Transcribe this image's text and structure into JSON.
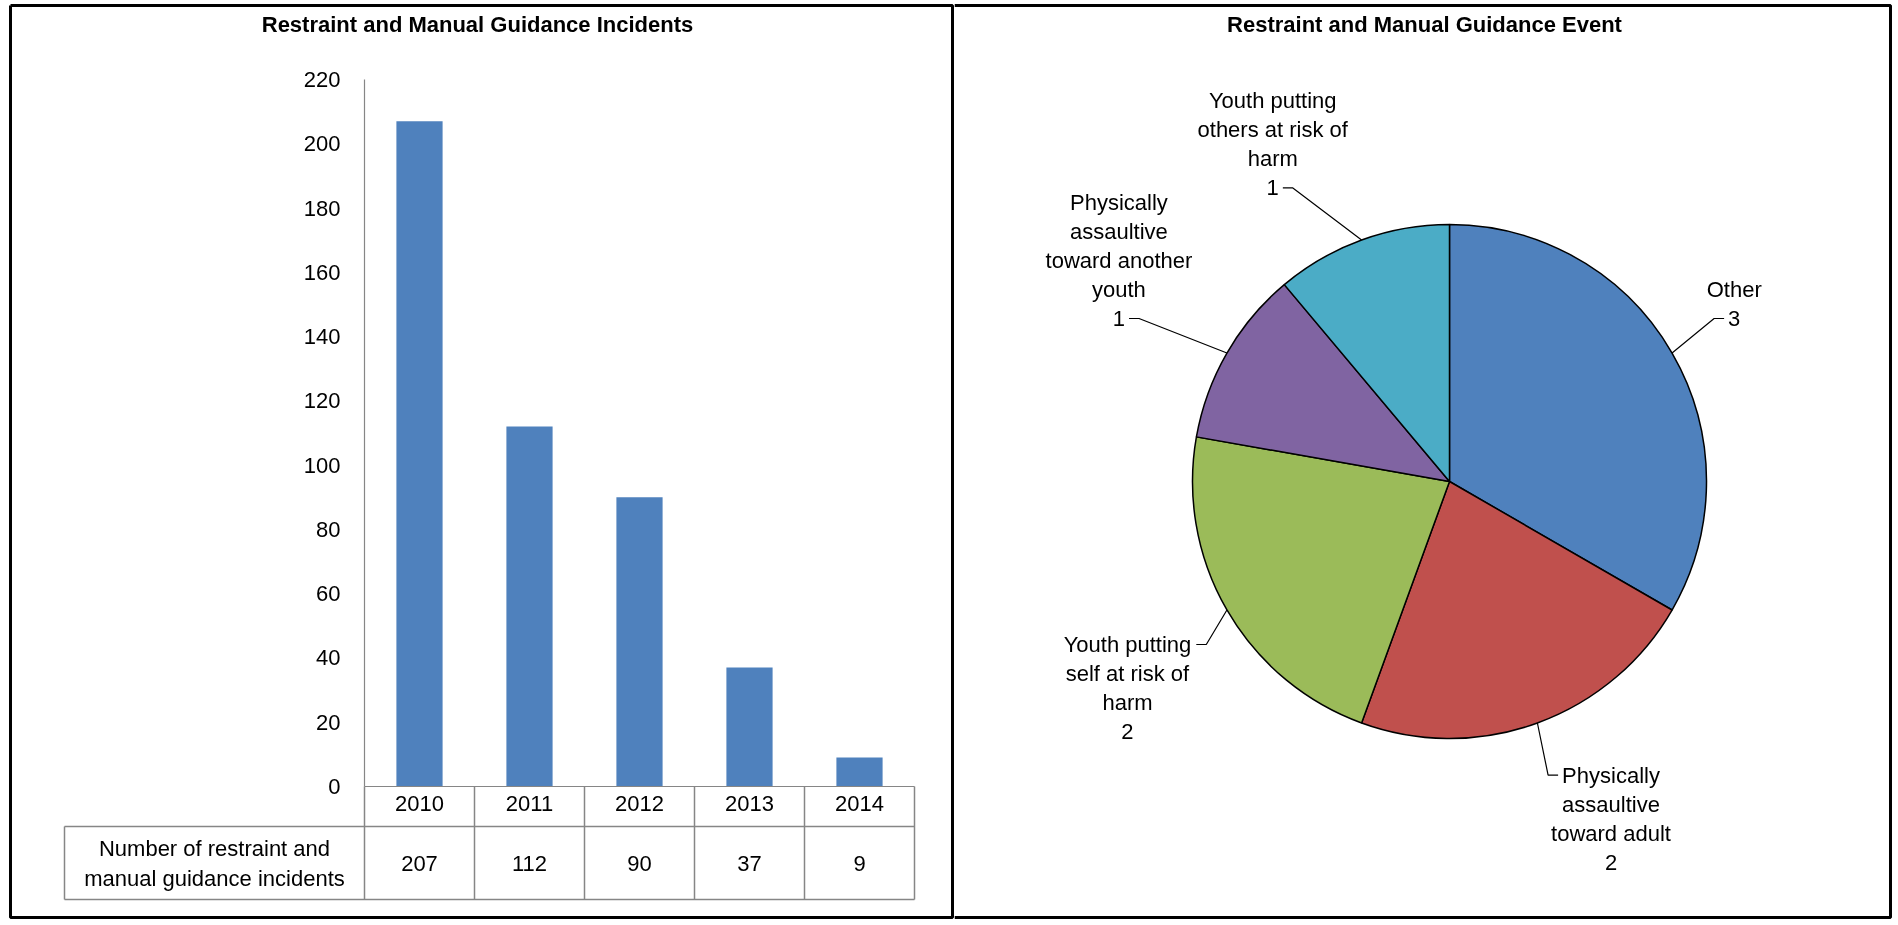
{
  "chart_data": [
    {
      "type": "bar",
      "title": "Restraint and Manual Guidance Incidents",
      "categories": [
        "2010",
        "2011",
        "2012",
        "2013",
        "2014"
      ],
      "series": [
        {
          "name": "Number of restraint and manual guidance incidents",
          "color": "#4f81bd",
          "values": [
            207,
            112,
            90,
            37,
            9
          ]
        }
      ],
      "ylim": [
        0,
        220
      ],
      "yticks": [
        0,
        20,
        40,
        60,
        80,
        100,
        120,
        140,
        160,
        180,
        200,
        220
      ],
      "data_labels": true
    },
    {
      "type": "pie",
      "title": "Restraint and Manual Guidance Event",
      "categories": [
        "Other",
        "Physically assaultive toward adult",
        "Youth putting self at risk of harm",
        "Physically assaultive toward another youth",
        "Youth putting others at risk of harm"
      ],
      "values": [
        3,
        2,
        2,
        1,
        1
      ],
      "colors": [
        "#4f81bd",
        "#c0504d",
        "#9bbb59",
        "#8064a2",
        "#4bacc6"
      ],
      "data_labels": true
    }
  ]
}
